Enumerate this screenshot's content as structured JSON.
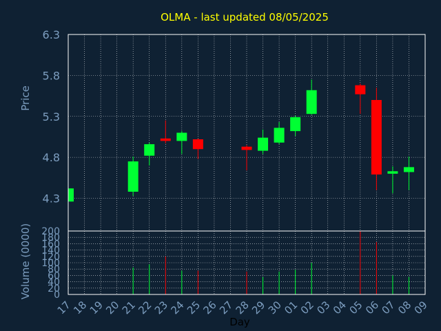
{
  "chart_data": {
    "type": "candlestick",
    "title": "OLMA - last updated 08/05/2025",
    "xlabel": "Day",
    "price_panel": {
      "ylabel": "Price",
      "ylim": [
        3.9,
        6.3
      ],
      "yticks": [
        "6.3",
        "5.8",
        "5.3",
        "4.8",
        "4.3"
      ],
      "grid": true
    },
    "volume_panel": {
      "ylabel": "Volume (0000)",
      "ylim": [
        0,
        200
      ],
      "yticks": [
        "200",
        "180",
        "160",
        "140",
        "120",
        "100",
        "80",
        "60",
        "40",
        "20",
        "0"
      ],
      "grid": true
    },
    "x_tick_labels": [
      "17",
      "18",
      "19",
      "20",
      "21",
      "22",
      "23",
      "24",
      "25",
      "26",
      "27",
      "28",
      "29",
      "30",
      "01",
      "02",
      "03",
      "04",
      "05",
      "06",
      "07",
      "08",
      "09"
    ],
    "candles": [
      {
        "day": "17",
        "open": 4.26,
        "close": 4.42,
        "high": 4.42,
        "low": 4.26,
        "volume": 0
      },
      {
        "day": "21",
        "open": 4.38,
        "close": 4.75,
        "high": 4.81,
        "low": 4.33,
        "volume": 85
      },
      {
        "day": "22",
        "open": 4.82,
        "close": 4.96,
        "high": 4.98,
        "low": 4.7,
        "volume": 95
      },
      {
        "day": "23",
        "open": 5.03,
        "close": 5.0,
        "high": 5.25,
        "low": 4.97,
        "volume": 120
      },
      {
        "day": "24",
        "open": 5.0,
        "close": 5.1,
        "high": 5.12,
        "low": 4.84,
        "volume": 75
      },
      {
        "day": "25",
        "open": 5.02,
        "close": 4.9,
        "high": 5.03,
        "low": 4.78,
        "volume": 75
      },
      {
        "day": "28",
        "open": 4.93,
        "close": 4.89,
        "high": 4.95,
        "low": 4.64,
        "volume": 72
      },
      {
        "day": "29",
        "open": 4.88,
        "close": 5.04,
        "high": 5.14,
        "low": 4.84,
        "volume": 55
      },
      {
        "day": "30",
        "open": 4.98,
        "close": 5.16,
        "high": 5.23,
        "low": 4.96,
        "volume": 72
      },
      {
        "day": "01",
        "open": 5.12,
        "close": 5.29,
        "high": 5.31,
        "low": 5.06,
        "volume": 78
      },
      {
        "day": "02",
        "open": 5.33,
        "close": 5.62,
        "high": 5.75,
        "low": 5.32,
        "volume": 100
      },
      {
        "day": "05",
        "open": 5.68,
        "close": 5.57,
        "high": 5.7,
        "low": 5.33,
        "volume": 200
      },
      {
        "day": "06",
        "open": 5.5,
        "close": 4.59,
        "high": 5.65,
        "low": 4.4,
        "volume": 165
      },
      {
        "day": "07",
        "open": 4.6,
        "close": 4.63,
        "high": 4.69,
        "low": 4.36,
        "volume": 60
      },
      {
        "day": "08",
        "open": 4.62,
        "close": 4.68,
        "high": 4.81,
        "low": 4.4,
        "volume": 55
      }
    ],
    "colors": {
      "up": "#00ff33",
      "down": "#ff0000",
      "background": "#0f2133",
      "grid": "#ffffff",
      "title": "#ffff00",
      "ticks": "#7c9dbf"
    }
  }
}
